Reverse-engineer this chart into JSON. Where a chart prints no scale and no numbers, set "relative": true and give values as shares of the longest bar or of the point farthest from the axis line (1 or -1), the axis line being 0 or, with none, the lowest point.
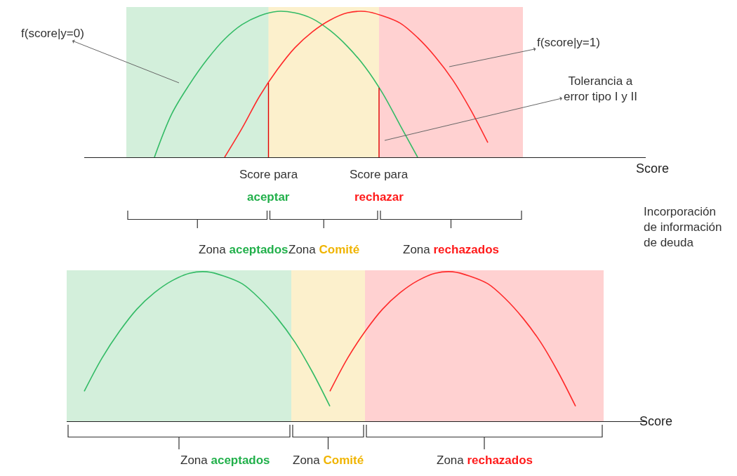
{
  "chart_data": [
    {
      "type": "line",
      "relative": true,
      "xlabel": "Score",
      "categories": [
        null,
        null,
        null,
        null,
        null,
        null,
        null,
        null,
        null,
        null,
        null,
        null,
        null,
        null,
        null,
        null,
        null,
        null,
        null,
        null,
        null,
        null,
        null,
        null,
        null,
        null,
        null,
        null,
        null,
        null,
        null,
        null,
        null
      ],
      "series": [
        {
          "color": "#33bb66",
          "values": [
            null,
            null,
            null,
            null,
            0,
            0.3,
            0.5,
            0.67,
            0.81,
            0.91,
            0.97,
            1.0,
            0.99,
            0.95,
            0.87,
            0.76,
            0.62,
            0.44,
            0.22,
            0,
            null,
            null,
            null,
            null,
            null,
            null,
            null,
            null,
            null,
            null,
            null,
            null,
            null
          ]
        },
        {
          "color": "#ff2a2a",
          "values": [
            null,
            null,
            null,
            null,
            null,
            null,
            null,
            null,
            0,
            0.2,
            0.42,
            0.6,
            0.75,
            0.86,
            0.94,
            0.99,
            1.0,
            0.97,
            0.92,
            0.82,
            0.69,
            0.53,
            0.33,
            0.1,
            null,
            null,
            null,
            null,
            null,
            null,
            null,
            null,
            null
          ]
        }
      ],
      "annotations": [
        "f(score|y=0)",
        "f(score|y=1)",
        "Tolerancia a\nerror tipo I y II",
        "Incorporación\nde información\nde deuda",
        "Score para aceptar",
        "Score para rechazar",
        "Zona aceptados",
        "Zona Comité",
        "Zona rechazados"
      ]
    },
    {
      "type": "line",
      "relative": true,
      "xlabel": "Score",
      "categories": [
        null,
        null,
        null,
        null,
        null,
        null,
        null,
        null,
        null,
        null,
        null,
        null,
        null,
        null,
        null,
        null,
        null,
        null,
        null,
        null,
        null,
        null,
        null,
        null,
        null,
        null,
        null,
        null,
        null,
        null,
        null,
        null,
        null,
        null
      ],
      "series": [
        {
          "color": "#33bb66",
          "values": [
            null,
            0.2,
            0.42,
            0.6,
            0.75,
            0.86,
            0.94,
            0.99,
            1.0,
            0.97,
            0.92,
            0.82,
            0.69,
            0.53,
            0.33,
            0.1,
            null,
            null,
            null,
            null,
            null,
            null,
            null,
            null,
            null,
            null,
            null,
            null,
            null,
            null,
            null,
            null,
            null,
            null
          ]
        },
        {
          "color": "#ff2a2a",
          "values": [
            null,
            null,
            null,
            null,
            null,
            null,
            null,
            null,
            null,
            null,
            null,
            null,
            null,
            null,
            null,
            0.2,
            0.42,
            0.6,
            0.75,
            0.86,
            0.94,
            0.99,
            1.0,
            0.97,
            0.92,
            0.82,
            0.69,
            0.53,
            0.33,
            0.1,
            null,
            null,
            null,
            null
          ]
        }
      ],
      "annotations": [
        "Zona aceptados",
        "Zona Comité",
        "Zona rechazados"
      ]
    }
  ]
}
